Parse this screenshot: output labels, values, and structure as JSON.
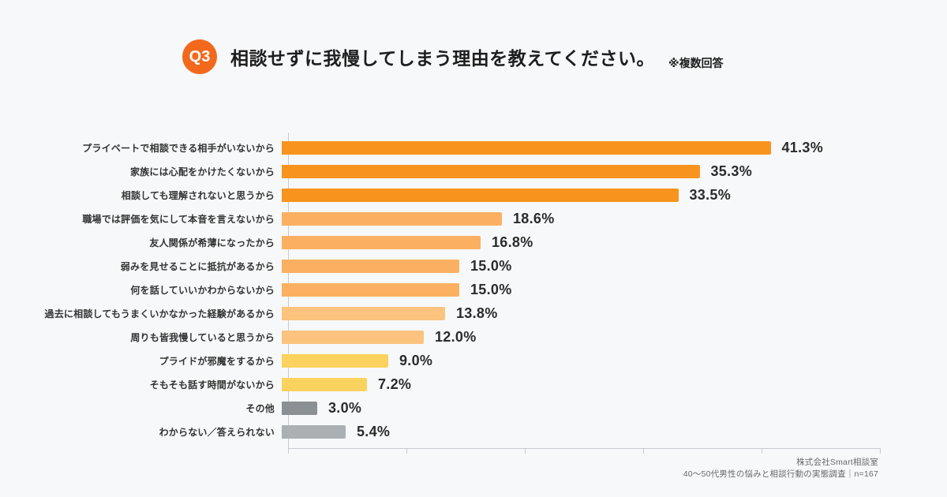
{
  "header": {
    "badge": "Q3",
    "title": "相談せずに我慢してしまう理由を教えてください。",
    "note": "※複数回答"
  },
  "chart_data": {
    "type": "bar",
    "orientation": "horizontal",
    "title": "相談せずに我慢してしまう理由",
    "xlabel": "",
    "ylabel": "",
    "xlim": [
      0,
      50
    ],
    "tick_step": 10,
    "grid": false,
    "categories": [
      "プライベートで相談できる相手がいないから",
      "家族には心配をかけたくないから",
      "相談しても理解されないと思うから",
      "職場では評価を気にして本音を言えないから",
      "友人関係が希薄になったから",
      "弱みを見せることに抵抗があるから",
      "何を話していいかわからないから",
      "過去に相談してもうまくいかなかった経験があるから",
      "周りも皆我慢していると思うから",
      "プライドが邪魔をするから",
      "そもそも話す時間がないから",
      "その他",
      "わからない／答えられない"
    ],
    "values": [
      41.3,
      35.3,
      33.5,
      18.6,
      16.8,
      15.0,
      15.0,
      13.8,
      12.0,
      9.0,
      7.2,
      3.0,
      5.4
    ],
    "value_labels": [
      "41.3%",
      "35.3%",
      "33.5%",
      "18.6%",
      "16.8%",
      "15.0%",
      "15.0%",
      "13.8%",
      "12.0%",
      "9.0%",
      "7.2%",
      "3.0%",
      "5.4%"
    ],
    "bar_colors": [
      "#f8941d",
      "#f8941d",
      "#f8941d",
      "#fbb061",
      "#fbb061",
      "#fbb061",
      "#fbb061",
      "#fbc37e",
      "#fbc37e",
      "#fcd25f",
      "#fcd25f",
      "#8a9094",
      "#abb0b4"
    ]
  },
  "footer": {
    "company": "株式会社Smart相談室",
    "survey": "40〜50代男性の悩みと相談行動の実態調査｜n=167"
  },
  "colors": {
    "background": "#f7f8f9",
    "badge": "#f2681c",
    "axis": "#c7cbcf",
    "text": "#2b2b2b"
  }
}
